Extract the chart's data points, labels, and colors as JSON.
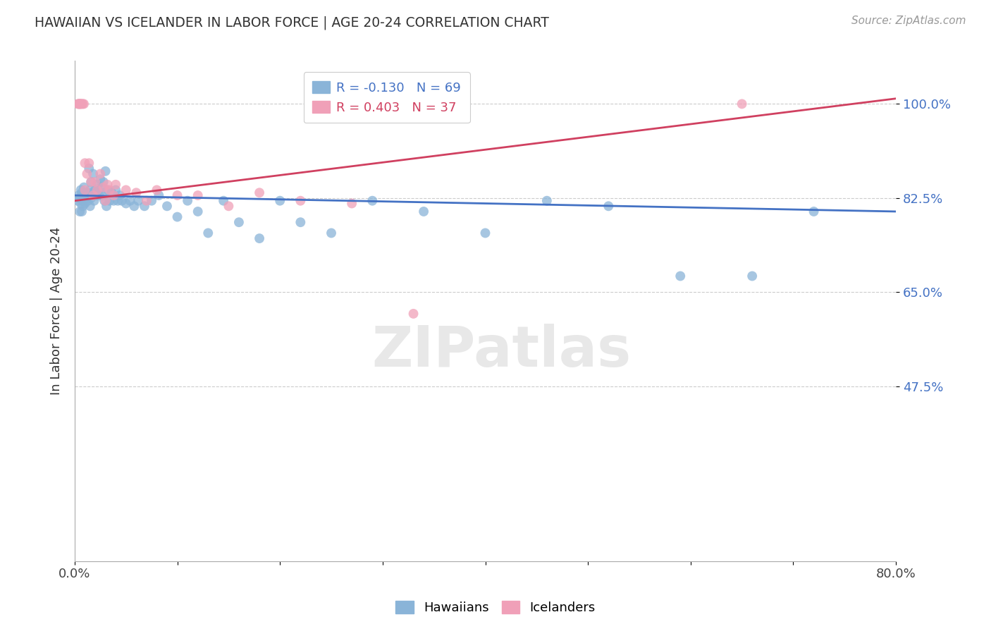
{
  "title": "HAWAIIAN VS ICELANDER IN LABOR FORCE | AGE 20-24 CORRELATION CHART",
  "source": "Source: ZipAtlas.com",
  "ylabel": "In Labor Force | Age 20-24",
  "xlim": [
    0.0,
    0.8
  ],
  "ylim": [
    0.15,
    1.08
  ],
  "yticks": [
    0.475,
    0.65,
    0.825,
    1.0
  ],
  "ytick_labels": [
    "47.5%",
    "65.0%",
    "82.5%",
    "100.0%"
  ],
  "xticks": [
    0.0,
    0.1,
    0.2,
    0.3,
    0.4,
    0.5,
    0.6,
    0.7,
    0.8
  ],
  "xtick_labels": [
    "0.0%",
    "",
    "",
    "",
    "",
    "",
    "",
    "",
    "80.0%"
  ],
  "hawaiian_color": "#8ab4d8",
  "icelander_color": "#f0a0b8",
  "line_hawaiian_color": "#4472c4",
  "line_icelander_color": "#d04060",
  "ytick_color": "#4472c4",
  "background_color": "#ffffff",
  "grid_color": "#cccccc",
  "R_hawaiian": -0.13,
  "N_hawaiian": 69,
  "R_icelander": 0.403,
  "N_icelander": 37,
  "watermark": "ZIPatlas",
  "legend_hawaiians": "Hawaiians",
  "legend_icelanders": "Icelanders",
  "hw_line_y0": 0.83,
  "hw_line_y1": 0.8,
  "ic_line_y0": 0.82,
  "ic_line_y1": 1.01,
  "hawaiian_scatter_x": [
    0.003,
    0.004,
    0.005,
    0.005,
    0.006,
    0.006,
    0.007,
    0.007,
    0.008,
    0.008,
    0.009,
    0.01,
    0.011,
    0.012,
    0.013,
    0.014,
    0.015,
    0.015,
    0.016,
    0.016,
    0.017,
    0.018,
    0.019,
    0.02,
    0.021,
    0.022,
    0.023,
    0.024,
    0.025,
    0.026,
    0.027,
    0.028,
    0.029,
    0.03,
    0.031,
    0.032,
    0.034,
    0.036,
    0.038,
    0.04,
    0.042,
    0.044,
    0.046,
    0.05,
    0.054,
    0.058,
    0.062,
    0.068,
    0.075,
    0.082,
    0.09,
    0.1,
    0.11,
    0.12,
    0.13,
    0.145,
    0.16,
    0.18,
    0.2,
    0.22,
    0.25,
    0.29,
    0.34,
    0.4,
    0.46,
    0.52,
    0.59,
    0.66,
    0.72
  ],
  "hawaiian_scatter_y": [
    0.82,
    0.83,
    0.825,
    0.8,
    0.84,
    0.815,
    0.835,
    0.8,
    0.82,
    0.81,
    0.845,
    0.815,
    0.825,
    0.835,
    0.82,
    0.88,
    0.84,
    0.81,
    0.855,
    0.825,
    0.835,
    0.87,
    0.82,
    0.84,
    0.83,
    0.85,
    0.84,
    0.83,
    0.86,
    0.845,
    0.83,
    0.855,
    0.82,
    0.875,
    0.81,
    0.84,
    0.82,
    0.835,
    0.82,
    0.84,
    0.82,
    0.83,
    0.82,
    0.815,
    0.82,
    0.81,
    0.82,
    0.81,
    0.82,
    0.83,
    0.81,
    0.79,
    0.82,
    0.8,
    0.76,
    0.82,
    0.78,
    0.75,
    0.82,
    0.78,
    0.76,
    0.82,
    0.8,
    0.76,
    0.82,
    0.81,
    0.68,
    0.68,
    0.8
  ],
  "icelander_scatter_x": [
    0.003,
    0.004,
    0.004,
    0.005,
    0.005,
    0.006,
    0.006,
    0.007,
    0.008,
    0.009,
    0.01,
    0.01,
    0.012,
    0.014,
    0.016,
    0.018,
    0.02,
    0.022,
    0.025,
    0.028,
    0.03,
    0.032,
    0.034,
    0.038,
    0.04,
    0.05,
    0.06,
    0.07,
    0.08,
    0.1,
    0.12,
    0.15,
    0.18,
    0.22,
    0.27,
    0.33,
    0.65
  ],
  "icelander_scatter_y": [
    1.0,
    1.0,
    1.0,
    1.0,
    1.0,
    1.0,
    1.0,
    1.0,
    1.0,
    1.0,
    0.89,
    0.84,
    0.87,
    0.89,
    0.855,
    0.83,
    0.855,
    0.84,
    0.87,
    0.845,
    0.82,
    0.85,
    0.84,
    0.83,
    0.85,
    0.84,
    0.835,
    0.82,
    0.84,
    0.83,
    0.83,
    0.81,
    0.835,
    0.82,
    0.815,
    0.61,
    1.0
  ]
}
